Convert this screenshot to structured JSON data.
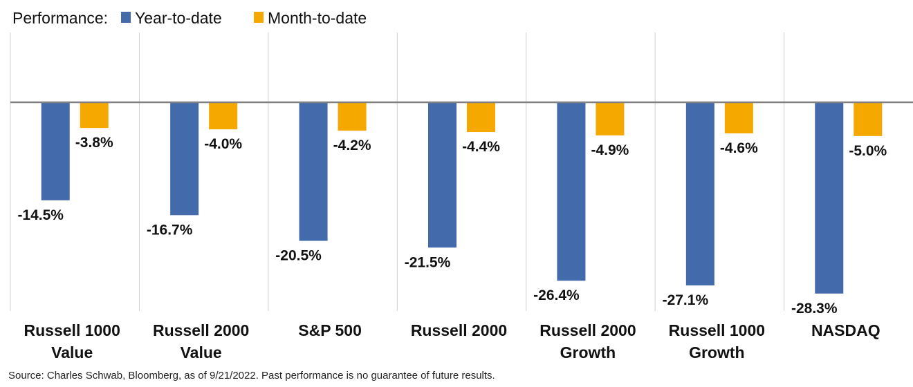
{
  "legend": {
    "prefix": "Performance:",
    "items": [
      {
        "label": "Year-to-date",
        "color": "#436AAB"
      },
      {
        "label": "Month-to-date",
        "color": "#F5A800"
      }
    ]
  },
  "source": "Source: Charles Schwab, Bloomberg, as of 9/21/2022.  Past performance is no guarantee of future results.",
  "chart_data": {
    "type": "bar",
    "title": "",
    "xlabel": "",
    "ylabel": "",
    "ylim": [
      -30,
      10
    ],
    "grid": false,
    "legend_position": "top-left",
    "categories": [
      [
        "Russell 1000",
        "Value"
      ],
      [
        "Russell 2000",
        "Value"
      ],
      [
        "S&P 500"
      ],
      [
        "Russell 2000"
      ],
      [
        "Russell 2000",
        "Growth"
      ],
      [
        "Russell 1000",
        "Growth"
      ],
      [
        "NASDAQ"
      ]
    ],
    "series": [
      {
        "name": "Year-to-date",
        "color": "#436AAB",
        "values": [
          -14.5,
          -16.7,
          -20.5,
          -21.5,
          -26.4,
          -27.1,
          -28.3
        ]
      },
      {
        "name": "Month-to-date",
        "color": "#F5A800",
        "values": [
          -3.8,
          -4.0,
          -4.2,
          -4.4,
          -4.9,
          -4.6,
          -5.0
        ]
      }
    ],
    "data_labels": [
      [
        "-14.5%",
        "-16.7%",
        "-20.5%",
        "-21.5%",
        "-26.4%",
        "-27.1%",
        "-28.3%"
      ],
      [
        "-3.8%",
        "-4.0%",
        "-4.2%",
        "-4.4%",
        "-4.9%",
        "-4.6%",
        "-5.0%"
      ]
    ]
  }
}
